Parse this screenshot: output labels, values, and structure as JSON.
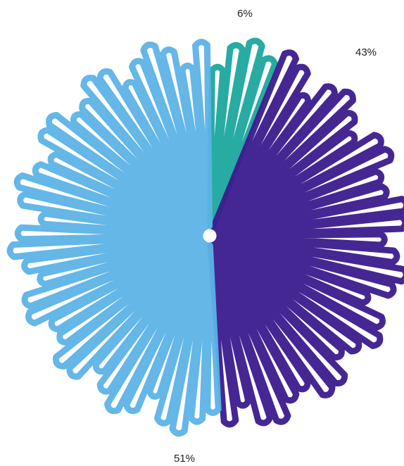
{
  "chart_data": {
    "type": "pie",
    "values": [
      6,
      43,
      51
    ],
    "value_labels": [
      "6%",
      "43%",
      "51%"
    ],
    "colors": [
      "#1ba79e",
      "#3b1b8e",
      "#5cb3e6"
    ]
  }
}
